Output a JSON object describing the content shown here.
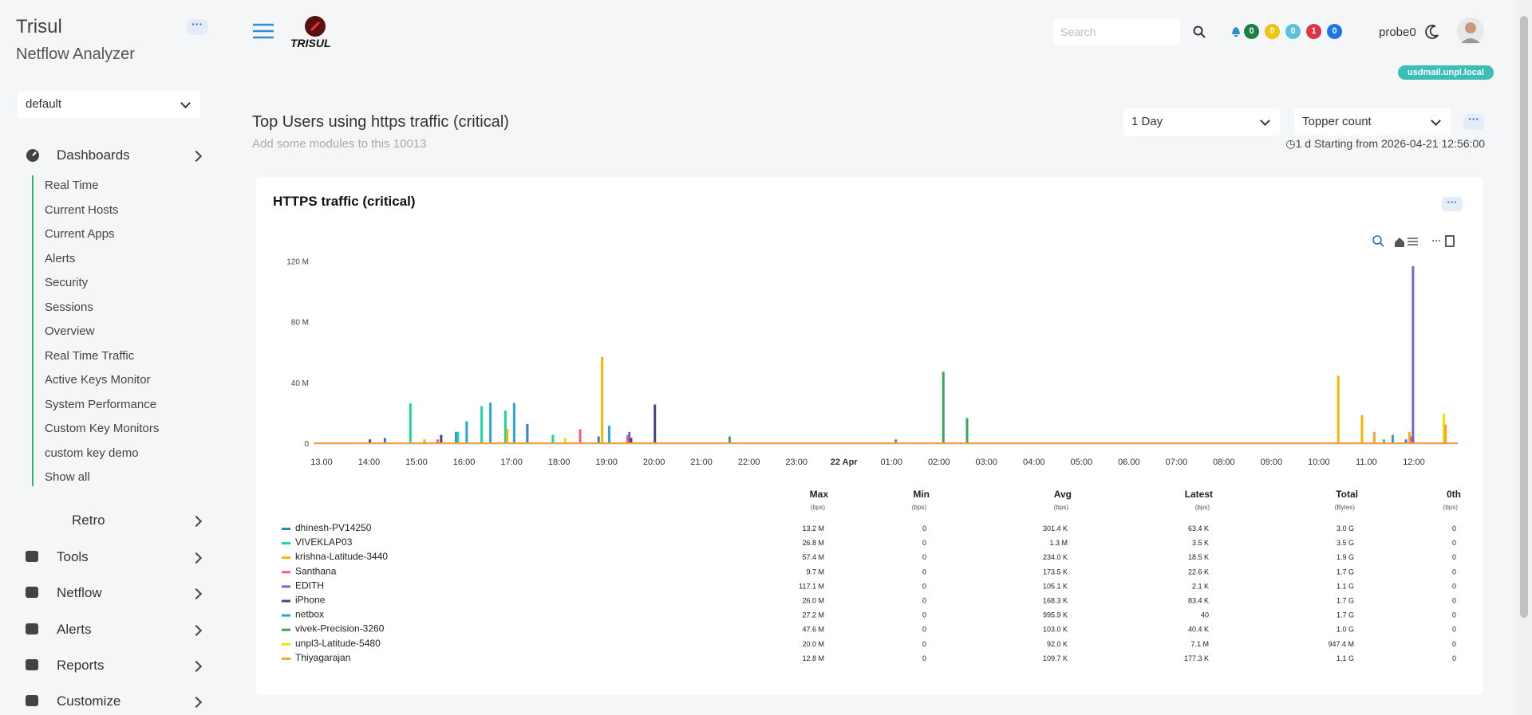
{
  "sidebar": {
    "app_title": "Trisul",
    "app_subtitle": "Netflow Analyzer",
    "context": "default",
    "dashboards": {
      "label": "Dashboards",
      "items": [
        "Real Time",
        "Current Hosts",
        "Current Apps",
        "Alerts",
        "Security",
        "Sessions",
        "Overview",
        "Real Time Traffic",
        "Active Keys Monitor",
        "System Performance",
        "Custom Key Monitors",
        "custom key demo",
        "Show all"
      ]
    },
    "menu": [
      "Retro",
      "Tools",
      "Netflow",
      "Alerts",
      "Reports",
      "Customize"
    ]
  },
  "header": {
    "logo": "TRISUL",
    "search_placeholder": "Search",
    "badges": [
      0,
      0,
      0,
      1,
      0
    ],
    "user": "probe0",
    "host": "usdmail.unpl.local"
  },
  "page": {
    "title": "Top Users using https traffic (critical)",
    "subtitle": "Add some modules to this 10013",
    "time_range": "1 Day",
    "mode": "Topper count",
    "range_info": "1 d Starting from 2026-04-21 12:56:00"
  },
  "chart_data": {
    "type": "bar",
    "title": "HTTPS traffic (critical)",
    "categories": [
      "13.00",
      null,
      "14:00",
      null,
      "15:00",
      null,
      "16:00",
      null,
      "17:00",
      null,
      "18:00",
      null,
      "19:00",
      null,
      "20:00",
      null,
      "21:00",
      null,
      "22:00",
      null,
      "23:00",
      null,
      "22 Apr",
      null,
      "01:00",
      null,
      "02:00",
      null,
      "03:00",
      null,
      "04:00",
      null,
      "05:00",
      null,
      "06.00",
      null,
      "07:00",
      null,
      "08:00",
      null,
      "09:00",
      null,
      "10:00",
      null,
      "11.00",
      null,
      "12:00",
      null
    ],
    "ylim": [
      0,
      125
    ],
    "yticks": [
      0,
      {
        "value": 40,
        "label": "40 M"
      },
      {
        "value": 80,
        "label": "80 M"
      },
      {
        "value": 120,
        "label": "120 M"
      }
    ],
    "series": [
      {
        "name": "dhinesh-PV14250",
        "color": "#2f7ed8",
        "values": [
          0,
          0,
          0,
          4,
          0,
          0,
          8,
          0,
          0,
          13.2,
          0,
          0,
          5,
          0,
          0,
          0,
          0,
          0,
          0,
          0,
          0,
          0,
          0,
          0,
          0,
          0,
          0,
          0,
          0,
          0,
          0,
          0,
          0,
          0,
          0,
          0,
          0,
          0,
          0,
          0,
          0,
          0,
          0,
          0,
          0,
          0,
          3,
          0
        ]
      },
      {
        "name": "VIVEKLAP03",
        "color": "#1ad6a0",
        "values": [
          0,
          0,
          0,
          0,
          26.8,
          0,
          8,
          25,
          22,
          0,
          6,
          0,
          0,
          0,
          0,
          0,
          0,
          0,
          0,
          0,
          0,
          0,
          0,
          0,
          0,
          0,
          0,
          0,
          0,
          0,
          0,
          0,
          0,
          0,
          0,
          0,
          0,
          0,
          0,
          0,
          0,
          0,
          0,
          0,
          0,
          3,
          0,
          0
        ]
      },
      {
        "name": "krishna-Latitude-3440",
        "color": "#f4b400",
        "values": [
          0,
          0,
          0,
          0,
          0,
          0,
          0,
          0,
          10,
          0,
          0,
          0,
          57.4,
          0,
          0,
          0,
          0,
          0,
          0,
          0,
          0,
          0,
          0,
          0,
          0,
          0,
          0,
          0,
          0,
          0,
          0,
          0,
          0,
          0,
          0,
          0,
          0,
          0,
          0,
          0,
          0,
          0,
          0,
          45,
          19,
          0,
          8,
          0
        ]
      },
      {
        "name": "Santhana",
        "color": "#f45b7a",
        "values": [
          0,
          0,
          0,
          0,
          0,
          3,
          0,
          0,
          0,
          0,
          0,
          9.7,
          0,
          6,
          0,
          0,
          0,
          0,
          0,
          0,
          0,
          0,
          0,
          0,
          0,
          0,
          0,
          0,
          0,
          0,
          0,
          0,
          0,
          0,
          0,
          0,
          0,
          0,
          0,
          0,
          0,
          0,
          0,
          0,
          0,
          0,
          5,
          0
        ]
      },
      {
        "name": "EDITH",
        "color": "#7b61d9",
        "values": [
          0,
          0,
          0,
          0,
          0,
          0,
          0,
          0,
          0,
          0,
          0,
          0,
          0,
          8,
          0,
          0,
          0,
          0,
          0,
          0,
          0,
          0,
          0,
          0,
          0,
          0,
          0,
          0,
          0,
          0,
          0,
          0,
          0,
          0,
          0,
          0,
          0,
          0,
          0,
          0,
          0,
          0,
          0,
          0,
          0,
          0,
          117.1,
          0
        ]
      },
      {
        "name": "iPhone",
        "color": "#434388",
        "values": [
          0,
          0,
          3,
          0,
          0,
          6,
          0,
          0,
          0,
          0,
          0,
          0,
          0,
          4,
          26,
          0,
          0,
          0,
          0,
          0,
          0,
          0,
          0,
          0,
          0,
          0,
          0,
          0,
          0,
          0,
          0,
          0,
          0,
          0,
          0,
          0,
          0,
          0,
          0,
          0,
          0,
          0,
          0,
          0,
          0,
          0,
          0,
          0
        ]
      },
      {
        "name": "netbox",
        "color": "#2ba3e0",
        "values": [
          0,
          0,
          0,
          0,
          0,
          0,
          15,
          27.2,
          27,
          0,
          0,
          0,
          12,
          0,
          0,
          0,
          0,
          0,
          0,
          0,
          0,
          0,
          0,
          0,
          0,
          0,
          0,
          0,
          0,
          0,
          0,
          0,
          0,
          0,
          0,
          0,
          0,
          0,
          0,
          0,
          0,
          0,
          0,
          0,
          0,
          6,
          0,
          0
        ]
      },
      {
        "name": "vivek-Precision-3260",
        "color": "#3aa65a",
        "values": [
          0,
          0,
          0,
          0,
          0,
          0,
          0,
          0,
          0,
          0,
          0,
          0,
          0,
          0,
          0,
          0,
          0,
          5,
          0,
          0,
          0,
          0,
          0,
          0,
          3,
          0,
          47.6,
          17,
          0,
          0,
          0,
          0,
          0,
          0,
          0,
          0,
          0,
          0,
          0,
          0,
          0,
          0,
          0,
          0,
          0,
          0,
          0,
          0
        ]
      },
      {
        "name": "unpl3-Latitude-5480",
        "color": "#e6e600",
        "values": [
          0,
          0,
          0,
          0,
          0,
          0,
          0,
          0,
          0,
          0,
          4,
          0,
          0,
          0,
          0,
          0,
          0,
          0,
          0,
          0,
          0,
          0,
          0,
          0,
          0,
          0,
          0,
          0,
          0,
          0,
          0,
          0,
          0,
          0,
          0,
          0,
          0,
          0,
          0,
          0,
          0,
          0,
          0,
          0,
          0,
          0,
          0,
          20
        ]
      },
      {
        "name": "Thiyagarajan",
        "color": "#f7a035",
        "values": [
          0,
          0,
          0,
          0,
          3,
          0,
          0,
          0,
          0,
          0,
          0,
          0,
          0,
          0,
          0,
          0,
          0,
          0,
          0,
          0,
          0,
          0,
          0,
          0,
          0,
          0,
          0,
          0,
          0,
          0,
          0,
          0,
          0,
          0,
          0,
          0,
          0,
          0,
          0,
          0,
          0,
          0,
          0,
          0,
          8,
          0,
          0,
          12.8
        ]
      }
    ],
    "stats_table": {
      "columns": [
        {
          "name": "Max",
          "unit": "(bps)"
        },
        {
          "name": "Min",
          "unit": "(bps)"
        },
        {
          "name": "Avg",
          "unit": "(bps)"
        },
        {
          "name": "Latest",
          "unit": "(bps)"
        },
        {
          "name": "Total",
          "unit": "(Bytes)"
        },
        {
          "name": "0th",
          "unit": "(bps)"
        }
      ],
      "rows": [
        [
          "13.2 M",
          "0",
          "301.4 K",
          "63.4 K",
          "3.0 G",
          "0"
        ],
        [
          "26.8 M",
          "0",
          "1.3 M",
          "3.5 K",
          "3.5 G",
          "0"
        ],
        [
          "57.4 M",
          "0",
          "234.0 K",
          "18.5 K",
          "1.9 G",
          "0"
        ],
        [
          "9.7 M",
          "0",
          "173.5 K",
          "22.6 K",
          "1.7 G",
          "0"
        ],
        [
          "117.1 M",
          "0",
          "105.1 K",
          "2.1 K",
          "1.1 G",
          "0"
        ],
        [
          "26.0 M",
          "0",
          "168.3 K",
          "83.4 K",
          "1.7 G",
          "0"
        ],
        [
          "27.2 M",
          "0",
          "995.9 K",
          "40",
          "1.7 G",
          "0"
        ],
        [
          "47.6 M",
          "0",
          "103.0 K",
          "40.4 K",
          "1.0 G",
          "0"
        ],
        [
          "20.0 M",
          "0",
          "92.0 K",
          "7.1 M",
          "947.4 M",
          "0"
        ],
        [
          "12.8 M",
          "0",
          "109.7 K",
          "177.3 K",
          "1.1 G",
          "0"
        ]
      ]
    }
  }
}
